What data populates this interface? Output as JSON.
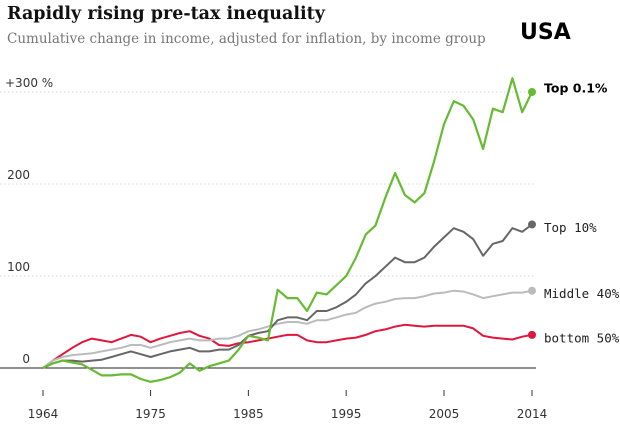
{
  "title": "Rapidly rising pre-tax inequality",
  "subtitle": "Cumulative change in income, adjusted for inflation, by income group",
  "country": "USA",
  "chart_data": {
    "type": "line",
    "title": "Rapidly rising pre-tax inequality",
    "subtitle": "Cumulative change in income, adjusted for inflation, by income group",
    "xlabel": "",
    "ylabel": "",
    "xlim": [
      1964,
      2014
    ],
    "ylim": [
      -30,
      320
    ],
    "x_ticks": [
      "1964",
      "1975",
      "1985",
      "1995",
      "2005",
      "2014"
    ],
    "y_ticks": [
      {
        "value": 0,
        "label": "0"
      },
      {
        "value": 100,
        "label": "100"
      },
      {
        "value": 200,
        "label": "200"
      },
      {
        "value": 300,
        "label": "+300 %"
      }
    ],
    "grid": true,
    "x": [
      1964,
      1965,
      1966,
      1967,
      1968,
      1969,
      1970,
      1971,
      1972,
      1973,
      1974,
      1975,
      1976,
      1977,
      1978,
      1979,
      1980,
      1981,
      1982,
      1983,
      1984,
      1985,
      1986,
      1987,
      1988,
      1989,
      1990,
      1991,
      1992,
      1993,
      1994,
      1995,
      1996,
      1997,
      1998,
      1999,
      2000,
      2001,
      2002,
      2003,
      2004,
      2005,
      2006,
      2007,
      2008,
      2009,
      2010,
      2011,
      2012,
      2013,
      2014
    ],
    "series": [
      {
        "name": "Top 0.1%",
        "color": "#66bb33",
        "values": [
          0,
          5,
          8,
          6,
          4,
          -2,
          -8,
          -8,
          -7,
          -7,
          -12,
          -15,
          -13,
          -10,
          -5,
          5,
          -3,
          2,
          5,
          8,
          20,
          35,
          33,
          30,
          85,
          76,
          76,
          62,
          82,
          80,
          90,
          100,
          120,
          145,
          155,
          185,
          212,
          188,
          180,
          190,
          225,
          265,
          290,
          285,
          270,
          238,
          282,
          278,
          315,
          278,
          300
        ]
      },
      {
        "name": "Top 10%",
        "color": "#666666",
        "values": [
          0,
          5,
          8,
          8,
          7,
          8,
          9,
          12,
          15,
          18,
          15,
          12,
          15,
          18,
          20,
          22,
          18,
          18,
          20,
          20,
          25,
          35,
          38,
          40,
          52,
          55,
          55,
          52,
          62,
          62,
          66,
          72,
          80,
          92,
          100,
          110,
          120,
          115,
          115,
          120,
          132,
          142,
          152,
          148,
          140,
          122,
          135,
          138,
          152,
          148,
          156
        ]
      },
      {
        "name": "Middle 40%",
        "color": "#bbbbbb",
        "values": [
          0,
          8,
          12,
          14,
          15,
          16,
          18,
          20,
          22,
          25,
          25,
          22,
          25,
          28,
          30,
          32,
          30,
          30,
          32,
          32,
          35,
          40,
          42,
          45,
          48,
          50,
          50,
          48,
          52,
          52,
          55,
          58,
          60,
          66,
          70,
          72,
          75,
          76,
          76,
          78,
          81,
          82,
          84,
          83,
          80,
          76,
          78,
          80,
          82,
          82,
          84
        ]
      },
      {
        "name": "bottom 50%",
        "color": "#e0163c",
        "values": [
          0,
          8,
          15,
          22,
          28,
          32,
          30,
          28,
          32,
          36,
          34,
          28,
          32,
          35,
          38,
          40,
          35,
          32,
          25,
          24,
          27,
          28,
          30,
          32,
          34,
          36,
          36,
          30,
          28,
          28,
          30,
          32,
          33,
          36,
          40,
          42,
          45,
          47,
          46,
          45,
          46,
          46,
          46,
          46,
          43,
          35,
          33,
          32,
          31,
          34,
          36
        ]
      }
    ]
  }
}
